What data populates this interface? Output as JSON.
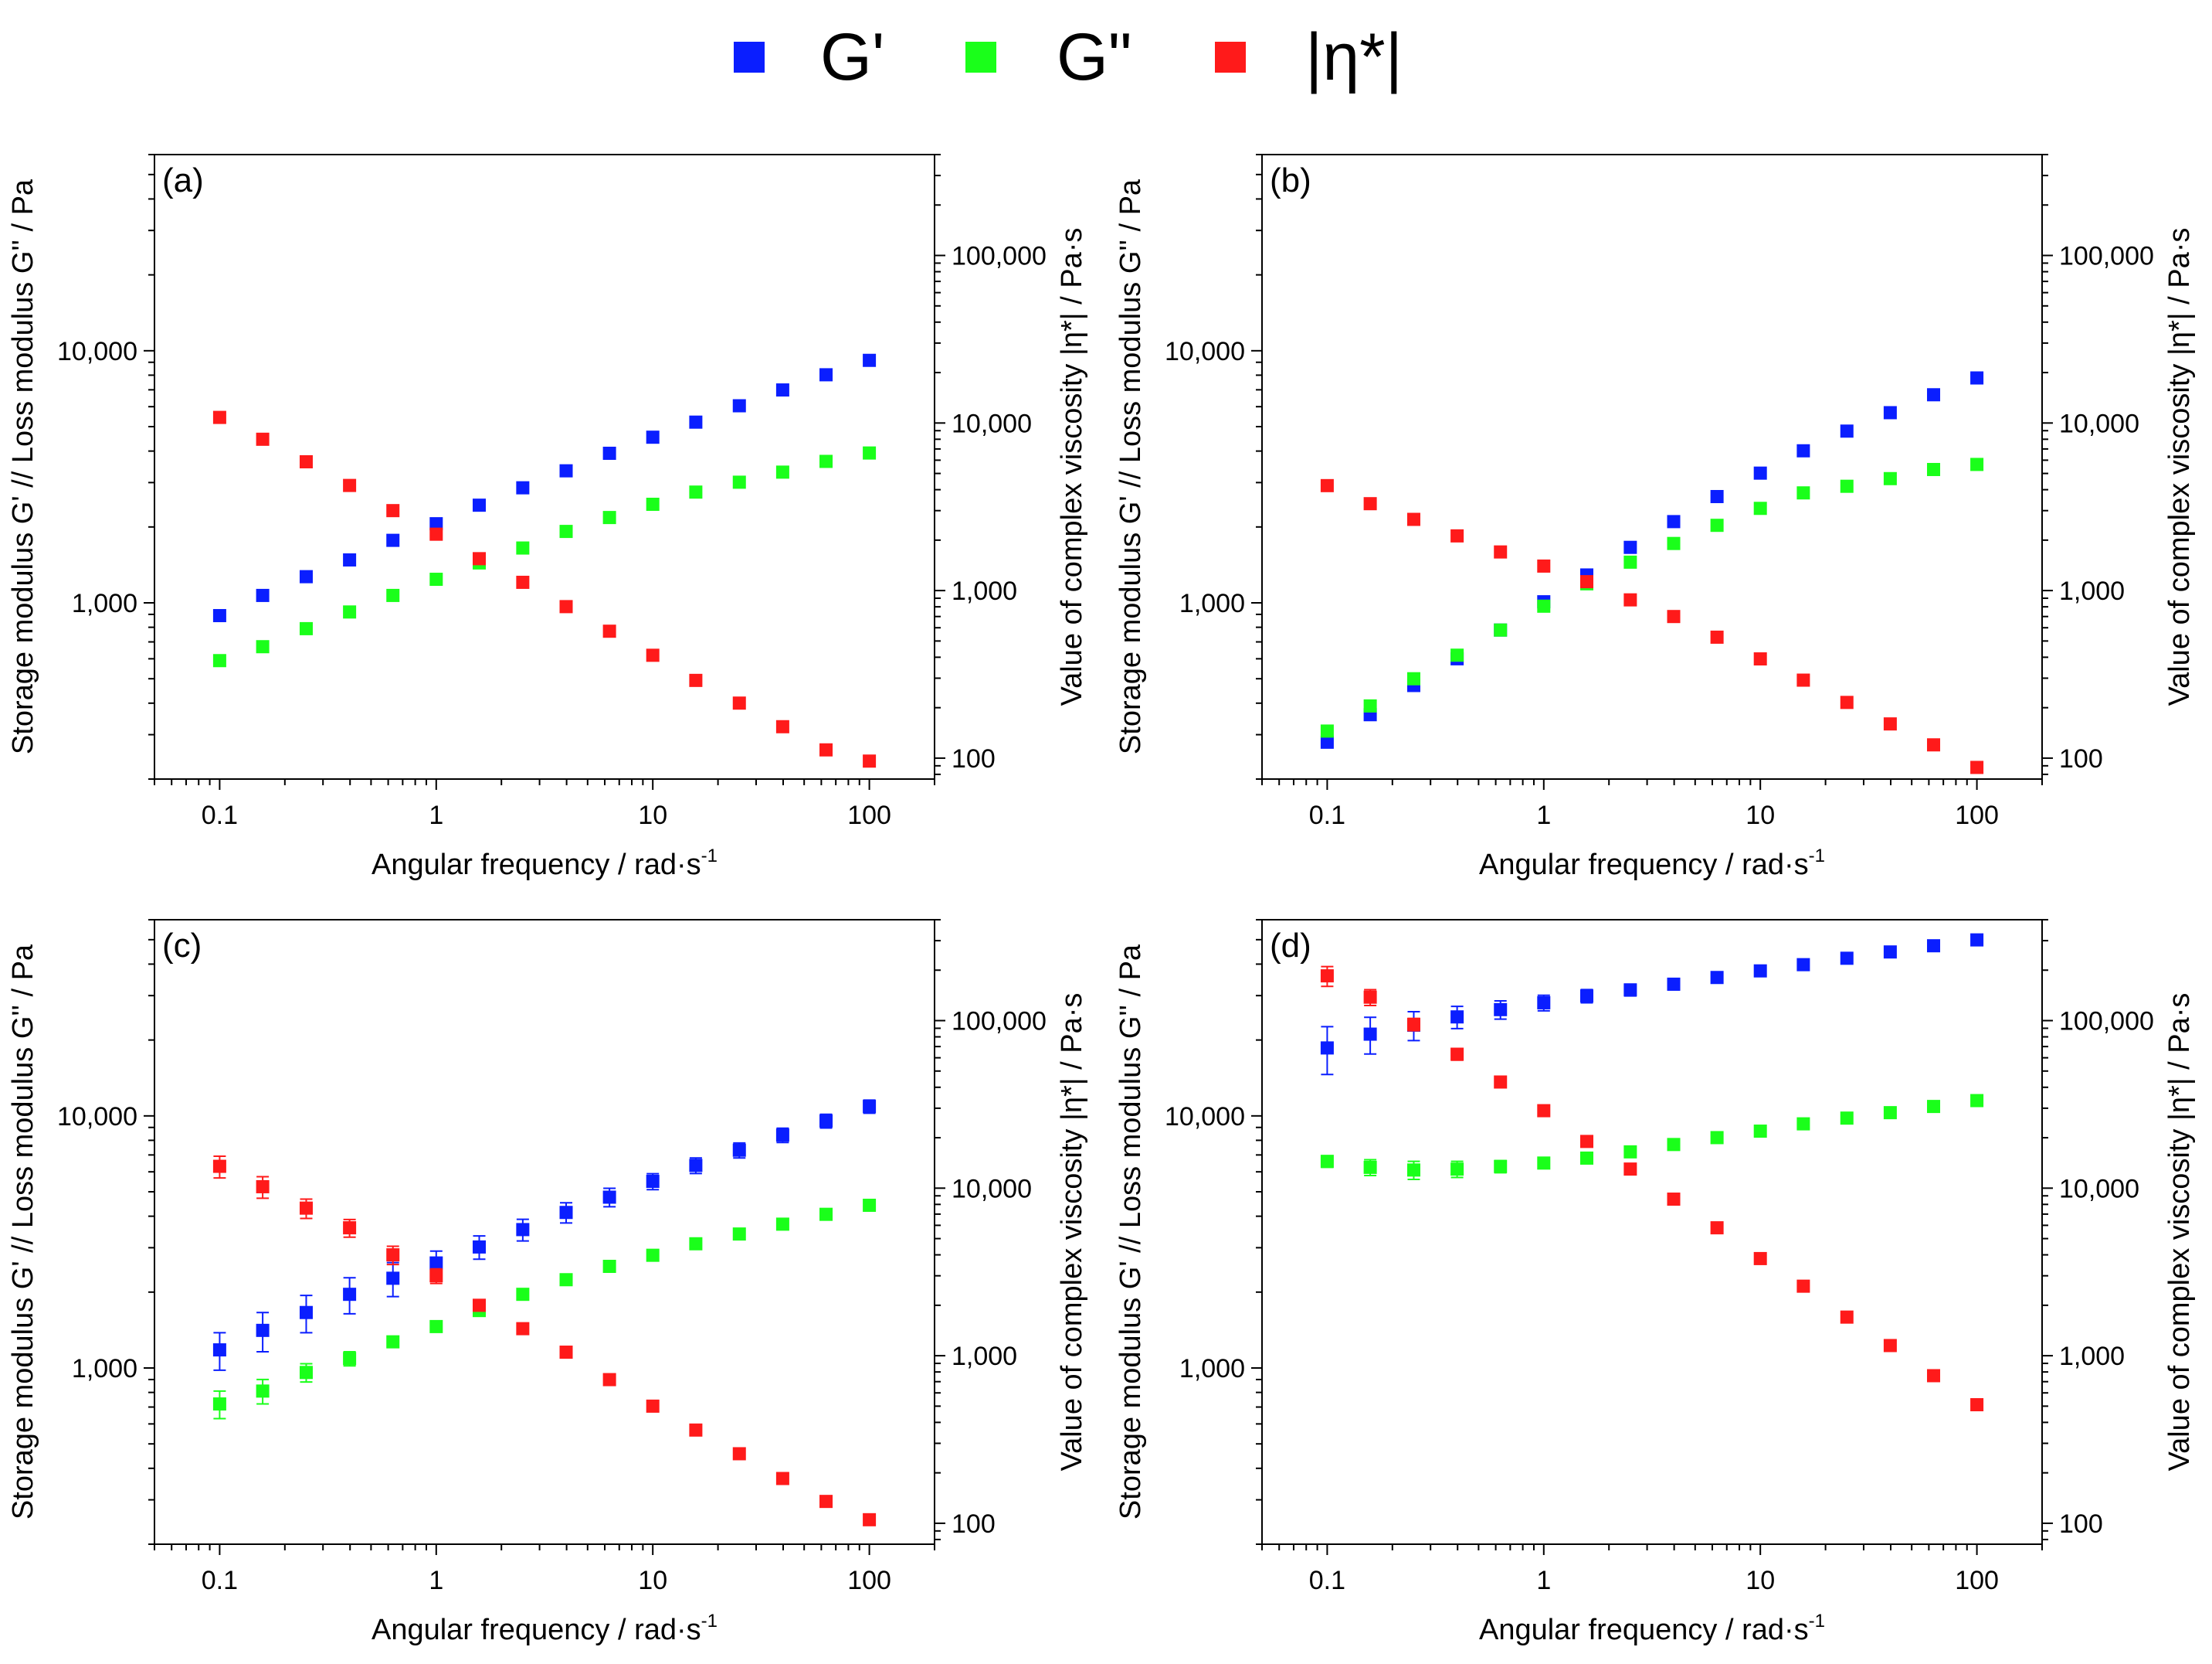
{
  "legend": [
    {
      "label": "G'",
      "color": "#0a1eff"
    },
    {
      "label": "G\"",
      "color": "#1aff1a"
    },
    {
      "label": "|η*|",
      "color": "#ff1a1a"
    }
  ],
  "colors": {
    "G1": "#0a1eff",
    "G2": "#1aff1a",
    "eta": "#ff1a1a"
  },
  "chart_data": [
    {
      "type": "scatter",
      "panel_label": "(a)",
      "xlabel": "Angular frequency / rad·s",
      "xlabel_sup": "-1",
      "ylabel_left": "Storage modulus G' // Loss modulus G'' / Pa",
      "ylabel_right": "Value of complex viscosity |η*| / Pa·s",
      "x_scale": "log",
      "xlim": [
        0.05,
        200
      ],
      "y_scale": "log",
      "ylim": [
        200,
        60000
      ],
      "y2_scale": "log",
      "y2lim": [
        75,
        400000
      ],
      "x_ticks": [
        {
          "v": 0.1,
          "t": "0.1"
        },
        {
          "v": 1,
          "t": "1"
        },
        {
          "v": 10,
          "t": "10"
        },
        {
          "v": 100,
          "t": "100"
        }
      ],
      "y_ticks": [
        {
          "v": 1000,
          "t": "1,000"
        },
        {
          "v": 10000,
          "t": "10,000"
        }
      ],
      "y2_ticks": [
        {
          "v": 100,
          "t": "100"
        },
        {
          "v": 1000,
          "t": "1,000"
        },
        {
          "v": 10000,
          "t": "10,000"
        },
        {
          "v": 100000,
          "t": "100,000"
        }
      ],
      "x": [
        0.1,
        0.158,
        0.251,
        0.398,
        0.631,
        1,
        1.58,
        2.51,
        3.98,
        6.31,
        10,
        15.8,
        25.1,
        39.8,
        63.1,
        100
      ],
      "series": [
        {
          "name": "G'",
          "axis": "left",
          "color": "#0a1eff",
          "values": [
            890,
            1070,
            1270,
            1480,
            1770,
            2060,
            2440,
            2860,
            3340,
            3920,
            4540,
            5210,
            6050,
            6990,
            8030,
            9160
          ],
          "errors": []
        },
        {
          "name": "G\"",
          "axis": "left",
          "color": "#1aff1a",
          "values": [
            590,
            670,
            790,
            920,
            1070,
            1240,
            1440,
            1650,
            1920,
            2180,
            2460,
            2750,
            3010,
            3300,
            3640,
            3930
          ],
          "errors": []
        },
        {
          "name": "|η*|",
          "axis": "right",
          "color": "#ff1a1a",
          "values": [
            10800,
            8000,
            5870,
            4240,
            3000,
            2170,
            1550,
            1120,
            802,
            572,
            411,
            291,
            213,
            154,
            112,
            96
          ],
          "errors": []
        }
      ]
    },
    {
      "type": "scatter",
      "panel_label": "(b)",
      "xlabel": "Angular frequency / rad·s",
      "xlabel_sup": "-1",
      "ylabel_left": "Storage modulus G' // Loss modulus G'' / Pa",
      "ylabel_right": "Value of complex viscosity |η*| / Pa·s",
      "x_scale": "log",
      "xlim": [
        0.05,
        200
      ],
      "y_scale": "log",
      "ylim": [
        200,
        60000
      ],
      "y2_scale": "log",
      "y2lim": [
        75,
        400000
      ],
      "x_ticks": [
        {
          "v": 0.1,
          "t": "0.1"
        },
        {
          "v": 1,
          "t": "1"
        },
        {
          "v": 10,
          "t": "10"
        },
        {
          "v": 100,
          "t": "100"
        }
      ],
      "y_ticks": [
        {
          "v": 1000,
          "t": "1,000"
        },
        {
          "v": 10000,
          "t": "10,000"
        }
      ],
      "y2_ticks": [
        {
          "v": 100,
          "t": "100"
        },
        {
          "v": 1000,
          "t": "1,000"
        },
        {
          "v": 10000,
          "t": "10,000"
        },
        {
          "v": 100000,
          "t": "100,000"
        }
      ],
      "x": [
        0.1,
        0.158,
        0.251,
        0.398,
        0.631,
        1,
        1.58,
        2.51,
        3.98,
        6.31,
        10,
        15.8,
        25.1,
        39.8,
        63.1,
        100
      ],
      "series": [
        {
          "name": "G'",
          "axis": "left",
          "color": "#0a1eff",
          "values": [
            280,
            360,
            470,
            600,
            780,
            1010,
            1290,
            1660,
            2100,
            2640,
            3270,
            4010,
            4800,
            5680,
            6690,
            7800
          ],
          "errors": []
        },
        {
          "name": "G\"",
          "axis": "left",
          "color": "#1aff1a",
          "values": [
            310,
            390,
            500,
            620,
            780,
            970,
            1190,
            1450,
            1720,
            2030,
            2370,
            2730,
            2900,
            3110,
            3380,
            3540
          ],
          "errors": []
        },
        {
          "name": "|η*|",
          "axis": "right",
          "color": "#ff1a1a",
          "values": [
            4230,
            3300,
            2660,
            2120,
            1700,
            1400,
            1130,
            880,
            700,
            527,
            391,
            292,
            215,
            160,
            120,
            88
          ],
          "errors": []
        }
      ]
    },
    {
      "type": "scatter",
      "panel_label": "(c)",
      "xlabel": "Angular frequency / rad·s",
      "xlabel_sup": "-1",
      "ylabel_left": "Storage modulus G' // Loss modulus G'' / Pa",
      "ylabel_right": "Value of complex viscosity |η*| / Pa·s",
      "x_scale": "log",
      "xlim": [
        0.05,
        200
      ],
      "y_scale": "log",
      "ylim": [
        200,
        60000
      ],
      "y2_scale": "log",
      "y2lim": [
        75,
        400000
      ],
      "x_ticks": [
        {
          "v": 0.1,
          "t": "0.1"
        },
        {
          "v": 1,
          "t": "1"
        },
        {
          "v": 10,
          "t": "10"
        },
        {
          "v": 100,
          "t": "100"
        }
      ],
      "y_ticks": [
        {
          "v": 1000,
          "t": "1,000"
        },
        {
          "v": 10000,
          "t": "10,000"
        }
      ],
      "y2_ticks": [
        {
          "v": 100,
          "t": "100"
        },
        {
          "v": 1000,
          "t": "1,000"
        },
        {
          "v": 10000,
          "t": "10,000"
        },
        {
          "v": 100000,
          "t": "100,000"
        }
      ],
      "x": [
        0.1,
        0.158,
        0.251,
        0.398,
        0.631,
        1,
        1.58,
        2.51,
        3.98,
        6.31,
        10,
        15.8,
        25.1,
        39.8,
        63.1,
        100
      ],
      "series": [
        {
          "name": "G'",
          "axis": "left",
          "color": "#0a1eff",
          "values": [
            1180,
            1410,
            1660,
            1960,
            2270,
            2610,
            3020,
            3540,
            4140,
            4760,
            5500,
            6360,
            7310,
            8390,
            9550,
            10900
          ],
          "errors": [
            200,
            250,
            280,
            320,
            350,
            300,
            320,
            350,
            380,
            400,
            400,
            450,
            500,
            550,
            600,
            650
          ]
        },
        {
          "name": "G\"",
          "axis": "left",
          "color": "#1aff1a",
          "values": [
            720,
            810,
            960,
            1090,
            1270,
            1460,
            1690,
            1960,
            2240,
            2530,
            2800,
            3110,
            3400,
            3720,
            4070,
            4420
          ],
          "errors": [
            90,
            90,
            80,
            70,
            60,
            50,
            40,
            40,
            40,
            40,
            40,
            40,
            40,
            40,
            40,
            40
          ]
        },
        {
          "name": "|η*|",
          "axis": "right",
          "color": "#ff1a1a",
          "values": [
            13500,
            10200,
            7600,
            5800,
            4000,
            3000,
            2000,
            1450,
            1050,
            720,
            500,
            360,
            260,
            185,
            135,
            105
          ],
          "errors": [
            2000,
            1500,
            1000,
            700,
            500,
            300,
            150,
            80,
            40,
            25,
            15,
            10,
            8,
            6,
            5,
            4
          ]
        }
      ]
    },
    {
      "type": "scatter",
      "panel_label": "(d)",
      "xlabel": "Angular frequency / rad·s",
      "xlabel_sup": "-1",
      "ylabel_left": "Storage modulus G' // Loss modulus G'' / Pa",
      "ylabel_right": "Value of complex viscosity |η*| / Pa·s",
      "x_scale": "log",
      "xlim": [
        0.05,
        200
      ],
      "y_scale": "log",
      "ylim": [
        200,
        60000
      ],
      "y2_scale": "log",
      "y2lim": [
        75,
        400000
      ],
      "x_ticks": [
        {
          "v": 0.1,
          "t": "0.1"
        },
        {
          "v": 1,
          "t": "1"
        },
        {
          "v": 10,
          "t": "10"
        },
        {
          "v": 100,
          "t": "100"
        }
      ],
      "y_ticks": [
        {
          "v": 1000,
          "t": "1,000"
        },
        {
          "v": 10000,
          "t": "10,000"
        }
      ],
      "y2_ticks": [
        {
          "v": 100,
          "t": "100"
        },
        {
          "v": 1000,
          "t": "1,000"
        },
        {
          "v": 10000,
          "t": "10,000"
        },
        {
          "v": 100000,
          "t": "100,000"
        }
      ],
      "x": [
        0.1,
        0.158,
        0.251,
        0.398,
        0.631,
        1,
        1.58,
        2.51,
        3.98,
        6.31,
        10,
        15.8,
        25.1,
        39.8,
        63.1,
        100
      ],
      "series": [
        {
          "name": "G'",
          "axis": "left",
          "color": "#0a1eff",
          "values": [
            18600,
            21100,
            22900,
            24700,
            26400,
            28100,
            29900,
            31600,
            33300,
            35400,
            37600,
            39800,
            42200,
            44700,
            47300,
            49900
          ],
          "errors": [
            4000,
            3500,
            3000,
            2500,
            2200,
            2000,
            1800,
            1700,
            1700,
            1600,
            1600,
            1500,
            1500,
            1500,
            1600,
            1600
          ]
        },
        {
          "name": "G\"",
          "axis": "left",
          "color": "#1aff1a",
          "values": [
            6600,
            6250,
            6100,
            6150,
            6300,
            6500,
            6800,
            7200,
            7700,
            8200,
            8700,
            9300,
            9800,
            10300,
            10900,
            11500
          ],
          "errors": [
            350,
            450,
            500,
            450,
            350,
            300,
            250,
            200,
            200,
            200,
            200,
            200,
            200,
            200,
            200,
            200
          ]
        },
        {
          "name": "|η*|",
          "axis": "right",
          "color": "#ff1a1a",
          "values": [
            185000,
            138000,
            95000,
            63000,
            43000,
            29000,
            19000,
            13000,
            8600,
            5800,
            3800,
            2600,
            1700,
            1150,
            760,
            510
          ],
          "errors": [
            25000,
            15000,
            8000,
            5000,
            2000,
            800,
            300,
            200,
            100,
            80,
            50,
            40,
            30,
            20,
            15,
            10
          ]
        }
      ]
    }
  ]
}
